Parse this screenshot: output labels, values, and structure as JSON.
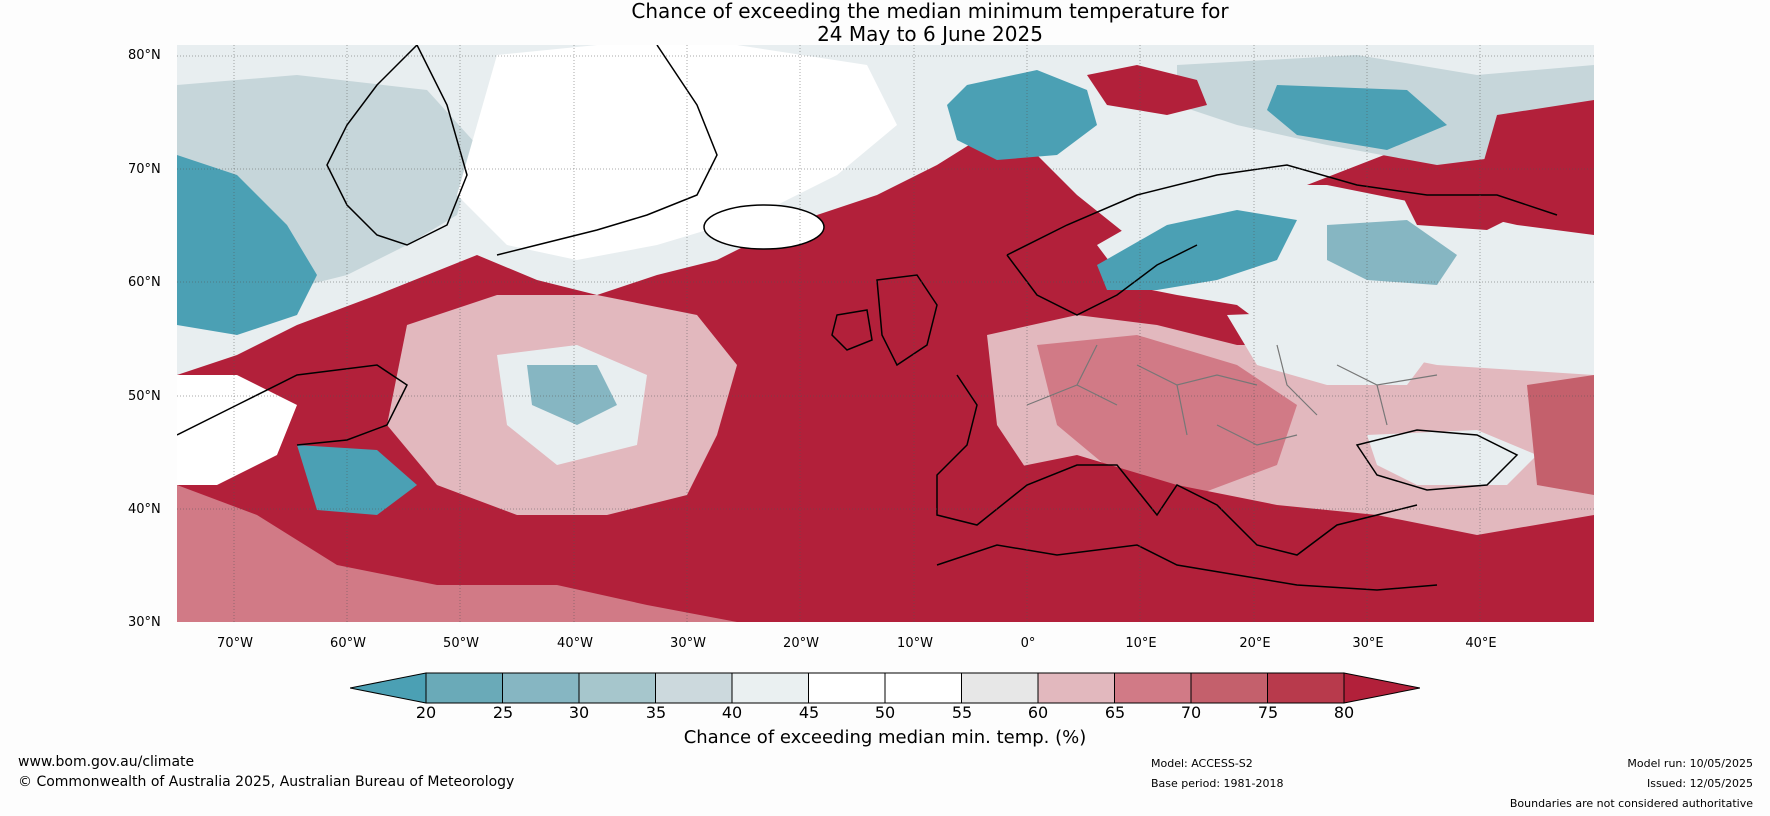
{
  "title": {
    "line1": "Chance of exceeding the median minimum temperature for",
    "line2": "24 May to 6 June 2025"
  },
  "map": {
    "lat_labels": [
      "80°N",
      "70°N",
      "60°N",
      "50°N",
      "40°N",
      "30°N"
    ],
    "lon_labels": [
      "70°W",
      "60°W",
      "50°W",
      "40°W",
      "30°W",
      "20°W",
      "10°W",
      "0°",
      "10°E",
      "20°E",
      "30°E",
      "40°E"
    ],
    "lat_range": [
      30,
      81
    ],
    "lon_range": [
      -75,
      50
    ]
  },
  "legend": {
    "ticks": [
      "20",
      "25",
      "30",
      "35",
      "40",
      "45",
      "50",
      "55",
      "60",
      "65",
      "70",
      "75",
      "80"
    ],
    "colors": [
      "#4ba0b4",
      "#6aaab8",
      "#86b6c2",
      "#a6c6cc",
      "#ccd9dd",
      "#eaf0f1",
      "#ffffff",
      "#ffffff",
      "#e7e7e7",
      "#e2b8be",
      "#d17a86",
      "#c4606c",
      "#b83a4c",
      "#b2203a"
    ],
    "label": "Chance of exceeding median min. temp. (%)"
  },
  "footer": {
    "website": "www.bom.gov.au/climate",
    "copyright": "© Commonwealth of Australia 2025, Australian Bureau of Meteorology",
    "model": "Model: ACCESS-S2",
    "base_period": "Base period: 1981-2018",
    "model_run": "Model run: 10/05/2025",
    "issued": "Issued: 12/05/2025",
    "disclaimer": "Boundaries are not considered authoritative"
  }
}
